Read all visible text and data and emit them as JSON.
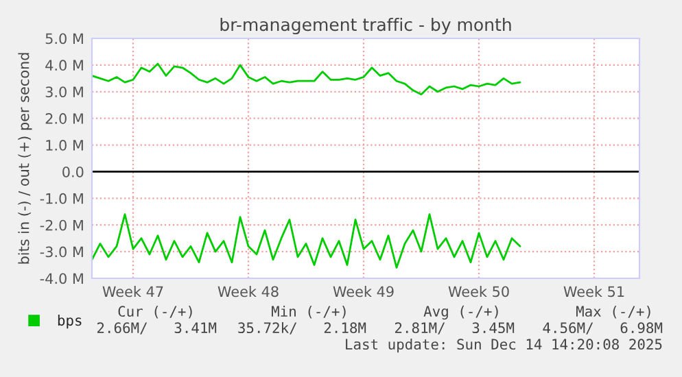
{
  "chart_data": {
    "type": "line",
    "title": "br-management traffic - by month",
    "ylabel": "bits in (-) / out (+) per second",
    "categories": [
      null,
      null,
      null,
      null,
      null,
      "Week 47",
      null,
      null,
      null,
      null,
      null,
      null,
      null,
      null,
      null,
      null,
      null,
      null,
      null,
      "Week 48",
      null,
      null,
      null,
      null,
      null,
      null,
      null,
      null,
      null,
      null,
      null,
      null,
      null,
      "Week 49",
      null,
      null,
      null,
      null,
      null,
      null,
      null,
      null,
      null,
      null,
      null,
      null,
      null,
      "Week 50",
      null,
      null,
      null,
      null,
      null,
      null,
      null,
      null,
      null,
      null,
      null,
      null,
      null,
      "Week 51",
      null,
      null,
      null,
      null,
      null
    ],
    "series": [
      {
        "name": "bps",
        "color": "#00cc00",
        "values": [
          3.6,
          3.5,
          3.4,
          3.55,
          3.35,
          3.45,
          3.9,
          3.75,
          4.05,
          3.6,
          3.95,
          3.9,
          3.7,
          3.45,
          3.35,
          3.5,
          3.3,
          3.5,
          4.0,
          3.55,
          3.4,
          3.55,
          3.3,
          3.4,
          3.35,
          3.4,
          3.4,
          3.4,
          3.75,
          3.45,
          3.45,
          3.5,
          3.45,
          3.55,
          3.9,
          3.6,
          3.7,
          3.4,
          3.3,
          3.05,
          2.9,
          3.2,
          3.0,
          3.15,
          3.2,
          3.1,
          3.25,
          3.2,
          3.3,
          3.25,
          3.5,
          3.3,
          3.35,
          null,
          null,
          null,
          null,
          null,
          null,
          null,
          null,
          null,
          null,
          null,
          null,
          null,
          null
        ]
      },
      {
        "color": "#00cc00",
        "values": [
          -3.3,
          -2.7,
          -3.2,
          -2.8,
          -1.6,
          -2.9,
          -2.5,
          -3.1,
          -2.4,
          -3.3,
          -2.6,
          -3.2,
          -2.8,
          -3.4,
          -2.3,
          -3.0,
          -2.6,
          -3.4,
          -1.7,
          -2.8,
          -3.1,
          -2.2,
          -3.3,
          -2.5,
          -1.8,
          -3.2,
          -2.7,
          -3.5,
          -2.5,
          -3.2,
          -2.6,
          -3.5,
          -1.8,
          -2.9,
          -2.6,
          -3.3,
          -2.4,
          -3.6,
          -2.7,
          -2.2,
          -3.0,
          -1.6,
          -2.9,
          -2.5,
          -3.2,
          -2.6,
          -3.4,
          -2.3,
          -3.2,
          -2.6,
          -3.3,
          -2.5,
          -2.8,
          null,
          null,
          null,
          null,
          null,
          null,
          null,
          null,
          null,
          null,
          null,
          null,
          null,
          null
        ]
      }
    ],
    "ylim": [
      -4.0,
      5.0
    ],
    "yticks": [
      {
        "value": -4,
        "label": "-4.0 M"
      },
      {
        "value": -3,
        "label": "-3.0 M"
      },
      {
        "value": -2,
        "label": "-2.0 M"
      },
      {
        "value": -1,
        "label": "-1.0 M"
      },
      {
        "value": 0,
        "label": "0.0"
      },
      {
        "value": 1,
        "label": "1.0 M"
      },
      {
        "value": 2,
        "label": "2.0 M"
      },
      {
        "value": 3,
        "label": "3.0 M"
      },
      {
        "value": 4,
        "label": "4.0 M"
      },
      {
        "value": 5,
        "label": "5.0 M"
      }
    ],
    "ref_lines": [
      {
        "axis": "y",
        "value": 0,
        "color": "#000000"
      }
    ],
    "grid": true,
    "legend": "bottom",
    "line_style": "solid",
    "marker": "none",
    "annotations": [
      "Cur (-/+)",
      "Min (-/+)",
      "Avg (-/+)",
      "Max (-/+)",
      "2.66M/   3.41M",
      "35.72k/   2.18M",
      "2.81M/   3.45M",
      "4.56M/   6.98M",
      "Last update: Sun Dec 14 14:20:08 2025"
    ]
  }
}
